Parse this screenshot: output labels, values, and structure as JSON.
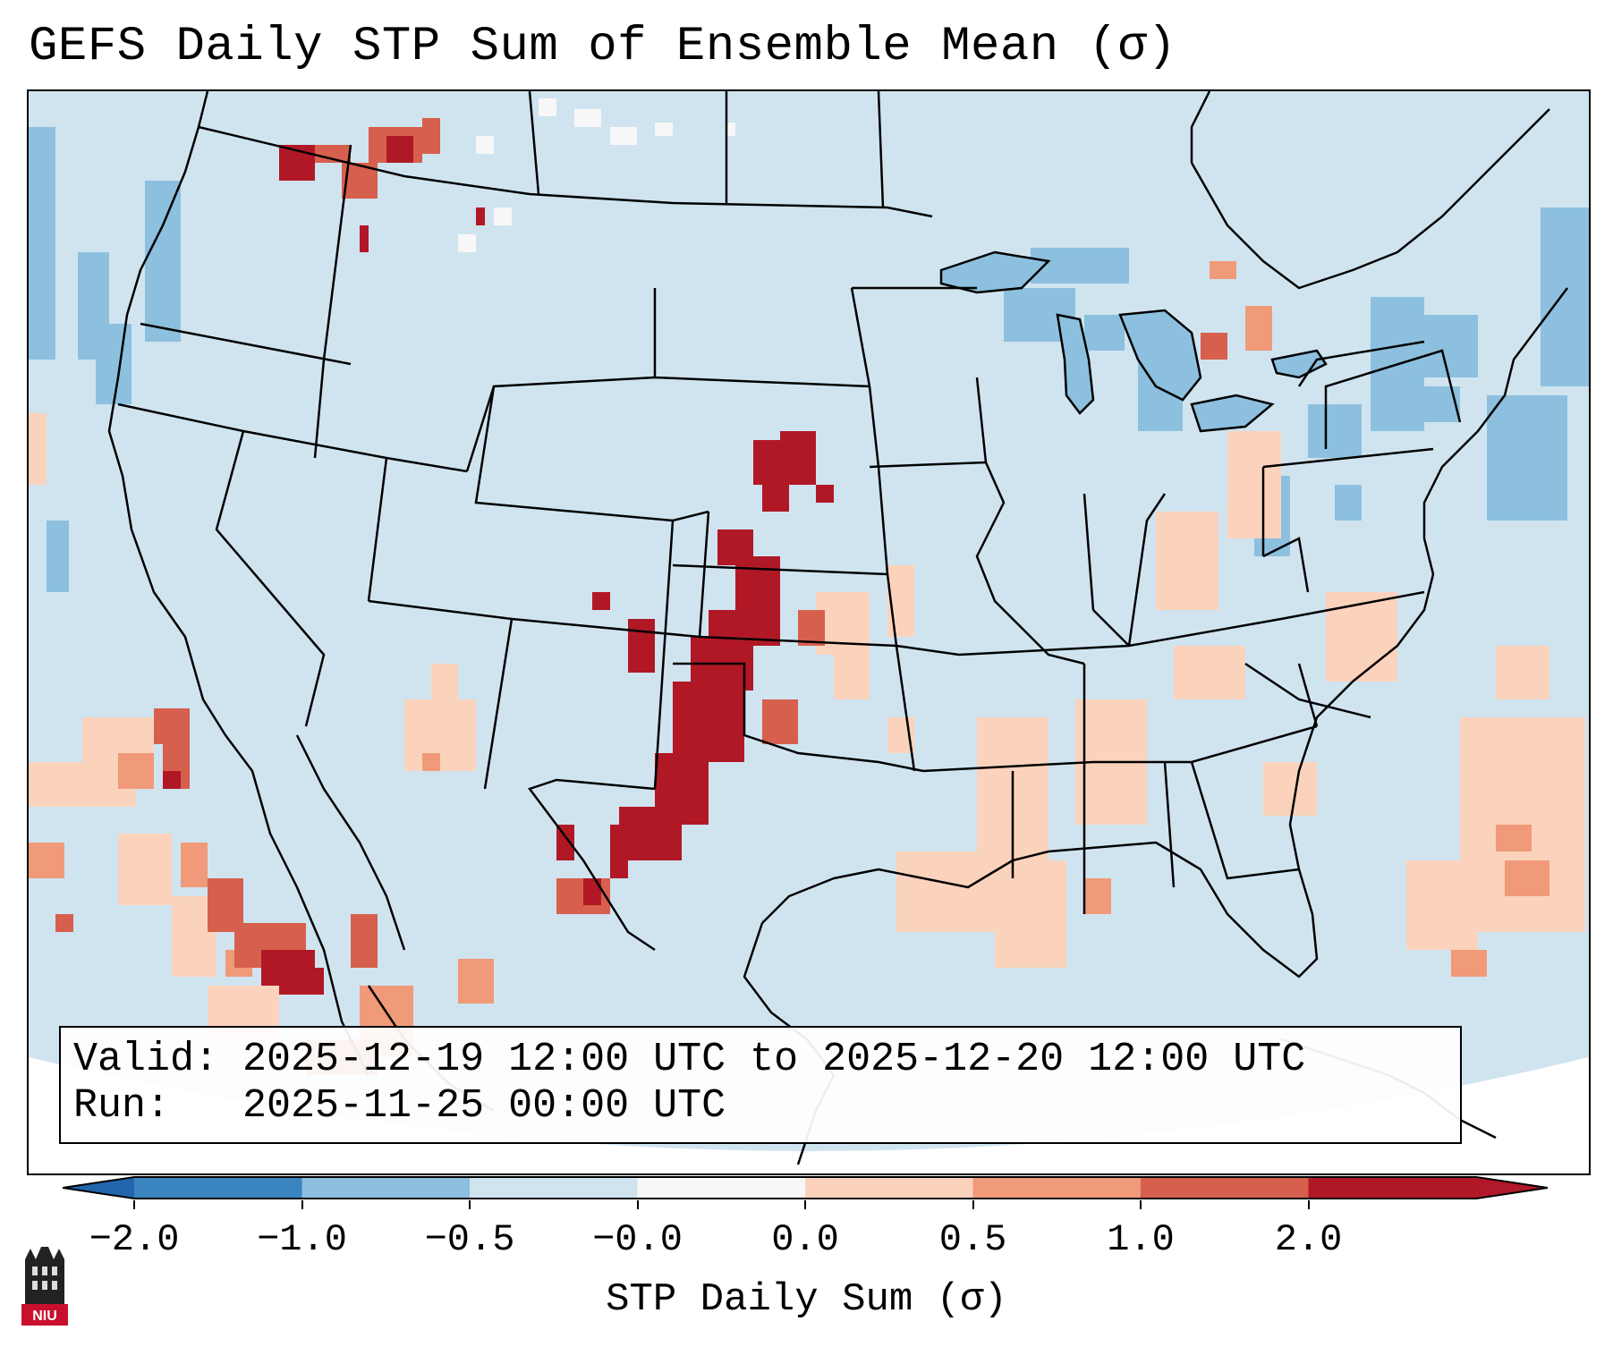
{
  "title": "GEFS Daily STP Sum of Ensemble Mean (σ)",
  "info": {
    "valid": "Valid: 2025-12-19 12:00 UTC to 2025-12-20 12:00 UTC",
    "run": "Run:   2025-11-25 00:00 UTC"
  },
  "colorbar": {
    "label": "STP Daily Sum (σ)",
    "ticks": [
      "−2.0",
      "−1.0",
      "−0.5",
      "−0.0",
      "0.0",
      "0.5",
      "1.0",
      "2.0"
    ],
    "bins": [
      "#3a85c0",
      "#8cc0de",
      "#d0e4f0",
      "#f7f7f7",
      "#fbd3bd",
      "#f09a79",
      "#d6604d",
      "#b11826"
    ],
    "extend_low": "#2166ac",
    "extend_high": "#b2182b"
  },
  "colors": {
    "background": "#d0e4f0",
    "lake": "#8cc0de",
    "border": "#000000"
  },
  "logo": {
    "text": "NIU"
  }
}
